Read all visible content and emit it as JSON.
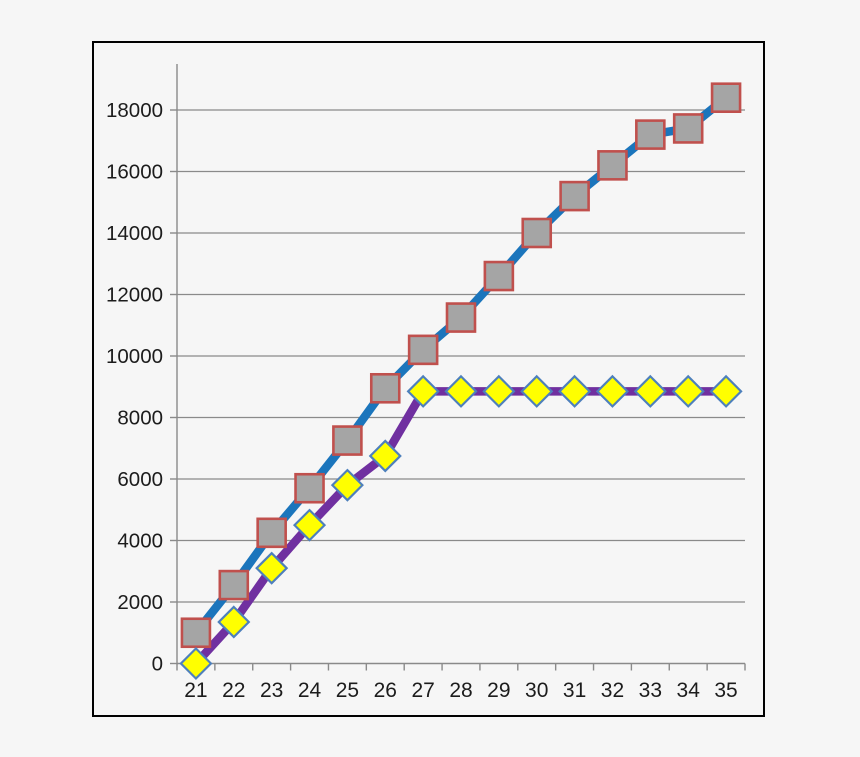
{
  "canvas": {
    "background_color": "#f6f6f6",
    "plot_border_color": "#000000",
    "gridline_color": "#8a8a8a",
    "axis_color": "#8a8a8a",
    "tick_label_color": "#1c1c1c"
  },
  "chart_data": {
    "type": "line",
    "title": "",
    "xlabel": "",
    "ylabel": "",
    "legend": "none",
    "grid": true,
    "categories": [
      21,
      22,
      23,
      24,
      25,
      26,
      27,
      28,
      29,
      30,
      31,
      32,
      33,
      34,
      35
    ],
    "x_tick_labels": [
      "21",
      "22",
      "23",
      "24",
      "25",
      "26",
      "27",
      "28",
      "29",
      "30",
      "31",
      "32",
      "33",
      "34",
      "35"
    ],
    "y_tick_labels": [
      "0",
      "2000",
      "4000",
      "6000",
      "8000",
      "10000",
      "12000",
      "14000",
      "16000",
      "18000"
    ],
    "ylim": [
      0,
      19500
    ],
    "y_tick_interval": 2000,
    "y_max_gridline": 18000,
    "series": [
      {
        "name": "upper-series-gray-squares",
        "line_color": "#1b75bc",
        "line_width": 8.5,
        "marker": "square",
        "marker_fill": "#a5a5a5",
        "marker_border": "#c0504d",
        "values": [
          1000,
          2550,
          4250,
          5700,
          7250,
          8950,
          10200,
          11250,
          12600,
          14000,
          15200,
          16200,
          17200,
          17400,
          18400
        ]
      },
      {
        "name": "lower-series-yellow-diamonds",
        "line_color": "#7030a0",
        "line_width": 8.5,
        "marker": "diamond",
        "marker_fill": "#ffff00",
        "marker_border": "#4e80bc",
        "values": [
          0,
          1350,
          3100,
          4500,
          5800,
          6750,
          8850,
          8850,
          8850,
          8850,
          8850,
          8850,
          8850,
          8850,
          8850
        ]
      }
    ]
  }
}
